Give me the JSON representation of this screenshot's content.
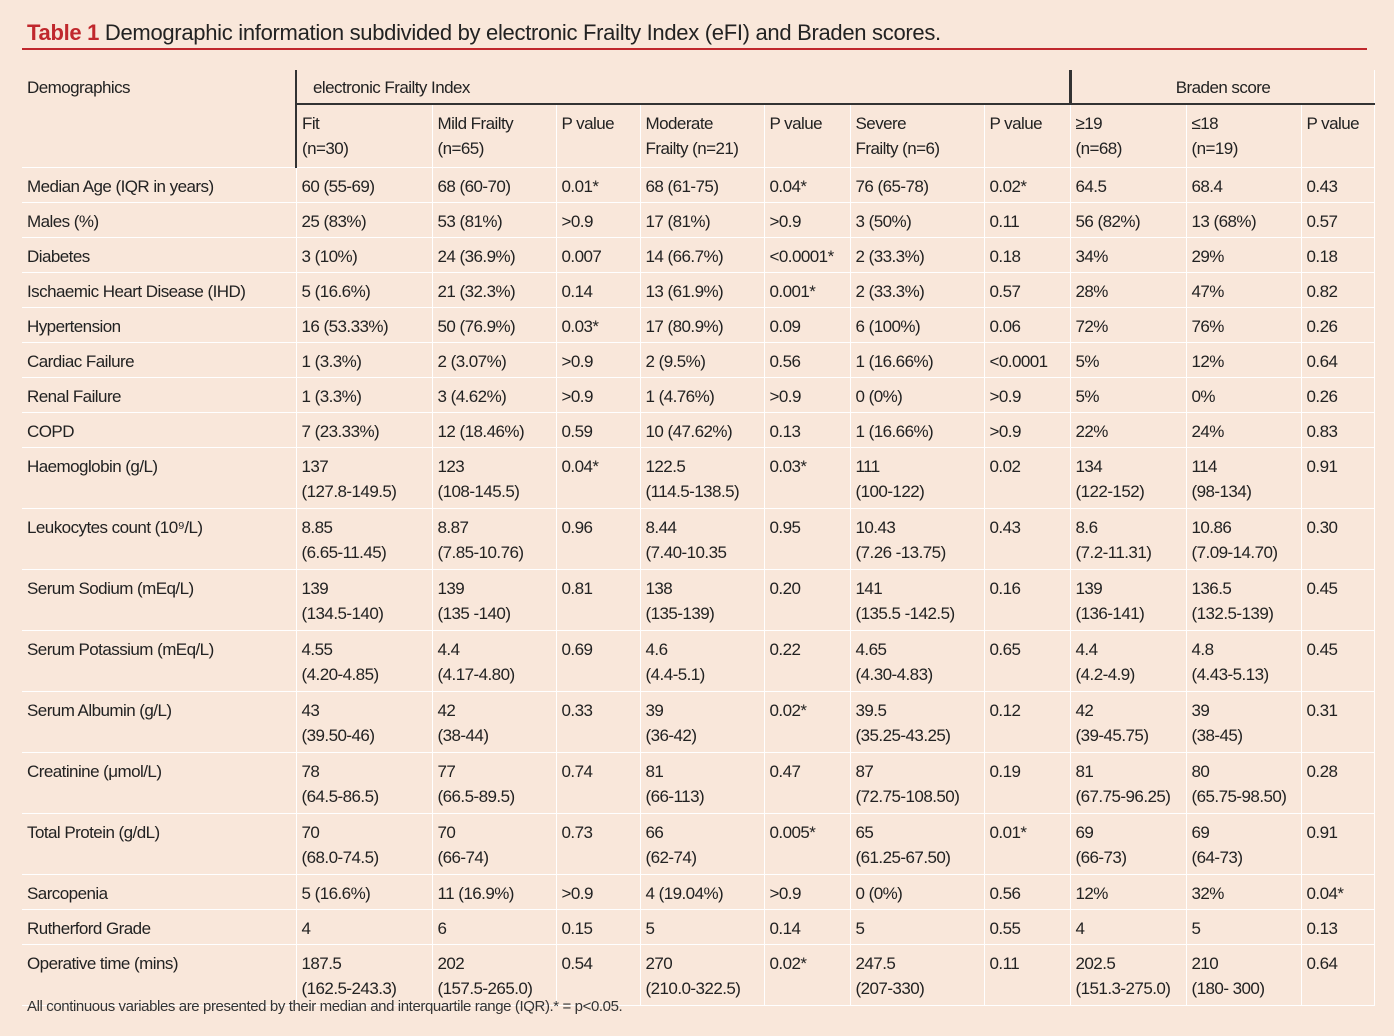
{
  "caption": {
    "label": "Table 1",
    "text": "Demographic information subdivided by electronic Frailty Index (eFI) and Braden scores."
  },
  "table": {
    "header": {
      "demographics": "Demographics",
      "group1": "electronic Frailty Index",
      "group2": "Braden score"
    },
    "columns": [
      [
        "Fit",
        "(n=30)"
      ],
      [
        "Mild Frailty",
        "(n=65)"
      ],
      [
        "P value"
      ],
      [
        "Moderate",
        "Frailty (n=21)"
      ],
      [
        "P value"
      ],
      [
        "Severe",
        "Frailty (n=6)"
      ],
      [
        "P value"
      ],
      [
        "≥19",
        "(n=68)"
      ],
      [
        "≤18",
        "(n=19)"
      ],
      [
        "P value"
      ]
    ],
    "rows": [
      [
        "Median Age (IQR in years)",
        "60 (55-69)",
        "68 (60-70)",
        "0.01*",
        "68 (61-75)",
        "0.04*",
        "76 (65-78)",
        "0.02*",
        "64.5",
        "68.4",
        "0.43"
      ],
      [
        "Males (%)",
        "25 (83%)",
        "53 (81%)",
        ">0.9",
        "17 (81%)",
        ">0.9",
        "3 (50%)",
        "0.11",
        "56 (82%)",
        "13 (68%)",
        "0.57"
      ],
      [
        "Diabetes",
        "3 (10%)",
        "24 (36.9%)",
        "0.007",
        "14 (66.7%)",
        "<0.0001*",
        "2 (33.3%)",
        "0.18",
        "34%",
        "29%",
        "0.18"
      ],
      [
        "Ischaemic Heart Disease (IHD)",
        "5 (16.6%)",
        "21 (32.3%)",
        "0.14",
        "13 (61.9%)",
        "0.001*",
        "2 (33.3%)",
        "0.57",
        "28%",
        "47%",
        "0.82"
      ],
      [
        "Hypertension",
        "16 (53.33%)",
        "50 (76.9%)",
        "0.03*",
        "17 (80.9%)",
        "0.09",
        "6 (100%)",
        "0.06",
        "72%",
        "76%",
        "0.26"
      ],
      [
        "Cardiac Failure",
        "1 (3.3%)",
        "2 (3.07%)",
        ">0.9",
        "2 (9.5%)",
        "0.56",
        "1 (16.66%)",
        "<0.0001",
        "5%",
        "12%",
        "0.64"
      ],
      [
        "Renal Failure",
        "1 (3.3%)",
        "3 (4.62%)",
        ">0.9",
        "1 (4.76%)",
        ">0.9",
        "0 (0%)",
        ">0.9",
        "5%",
        "0%",
        "0.26"
      ],
      [
        "COPD",
        "7 (23.33%)",
        "12 (18.46%)",
        "0.59",
        "10 (47.62%)",
        "0.13",
        "1 (16.66%)",
        ">0.9",
        "22%",
        "24%",
        "0.83"
      ],
      [
        "Haemoglobin (g/L)",
        [
          "137",
          "(127.8-149.5)"
        ],
        [
          "123",
          "(108-145.5)"
        ],
        "0.04*",
        [
          "122.5",
          "(114.5-138.5)"
        ],
        "0.03*",
        [
          "111",
          "(100-122)"
        ],
        "0.02",
        [
          "134",
          "(122-152)"
        ],
        [
          "114",
          "(98-134)"
        ],
        "0.91"
      ],
      [
        "Leukocytes count (10⁹/L)",
        [
          "8.85",
          "(6.65-11.45)"
        ],
        [
          "8.87",
          "(7.85-10.76)"
        ],
        "0.96",
        [
          "8.44",
          "(7.40-10.35"
        ],
        "0.95",
        [
          "10.43",
          "(7.26 -13.75)"
        ],
        "0.43",
        [
          "8.6",
          "(7.2-11.31)"
        ],
        [
          "10.86",
          "(7.09-14.70)"
        ],
        "0.30"
      ],
      [
        "Serum Sodium (mEq/L)",
        [
          "139",
          "(134.5-140)"
        ],
        [
          "139",
          "(135 -140)"
        ],
        "0.81",
        [
          "138",
          "(135-139)"
        ],
        "0.20",
        [
          "141",
          "(135.5 -142.5)"
        ],
        "0.16",
        [
          "139",
          "(136-141)"
        ],
        [
          "136.5",
          "(132.5-139)"
        ],
        "0.45"
      ],
      [
        "Serum Potassium (mEq/L)",
        [
          "4.55",
          "(4.20-4.85)"
        ],
        [
          "4.4",
          "(4.17-4.80)"
        ],
        "0.69",
        [
          "4.6",
          "(4.4-5.1)"
        ],
        "0.22",
        [
          "4.65",
          "(4.30-4.83)"
        ],
        "0.65",
        [
          "4.4",
          "(4.2-4.9)"
        ],
        [
          "4.8",
          "(4.43-5.13)"
        ],
        "0.45"
      ],
      [
        "Serum Albumin (g/L)",
        [
          "43",
          "(39.50-46)"
        ],
        [
          "42",
          "(38-44)"
        ],
        "0.33",
        [
          "39",
          "(36-42)"
        ],
        "0.02*",
        [
          "39.5",
          "(35.25-43.25)"
        ],
        "0.12",
        [
          "42",
          "(39-45.75)"
        ],
        [
          "39",
          "(38-45)"
        ],
        "0.31"
      ],
      [
        "Creatinine (μmol/L)",
        [
          "78",
          "(64.5-86.5)"
        ],
        [
          "77",
          "(66.5-89.5)"
        ],
        "0.74",
        [
          "81",
          "(66-113)"
        ],
        "0.47",
        [
          "87",
          "(72.75-108.50)"
        ],
        "0.19",
        [
          "81",
          "(67.75-96.25)"
        ],
        [
          "80",
          "(65.75-98.50)"
        ],
        "0.28"
      ],
      [
        "Total Protein (g/dL)",
        [
          "70",
          "(68.0-74.5)"
        ],
        [
          "70",
          "(66-74)"
        ],
        "0.73",
        [
          "66",
          "(62-74)"
        ],
        "0.005*",
        [
          "65",
          "(61.25-67.50)"
        ],
        "0.01*",
        [
          "69",
          "(66-73)"
        ],
        [
          "69",
          "(64-73)"
        ],
        "0.91"
      ],
      [
        "Sarcopenia",
        "5 (16.6%)",
        "11 (16.9%)",
        ">0.9",
        "4 (19.04%)",
        ">0.9",
        "0 (0%)",
        "0.56",
        "12%",
        "32%",
        "0.04*"
      ],
      [
        "Rutherford Grade",
        "4",
        "6",
        "0.15",
        "5",
        "0.14",
        "5",
        "0.55",
        "4",
        "5",
        "0.13"
      ],
      [
        "Operative time (mins)",
        [
          "187.5",
          "(162.5-243.3)"
        ],
        [
          "202",
          "(157.5-265.0)"
        ],
        "0.54",
        [
          "270",
          "(210.0-322.5)"
        ],
        "0.02*",
        [
          "247.5",
          "(207-330)"
        ],
        "0.11",
        [
          "202.5",
          "(151.3-275.0)"
        ],
        [
          "210",
          "(180- 300)"
        ],
        "0.64"
      ]
    ]
  },
  "footnote": "All continuous variables are presented by their median and interquartile range (IQR).* = p<0.05."
}
